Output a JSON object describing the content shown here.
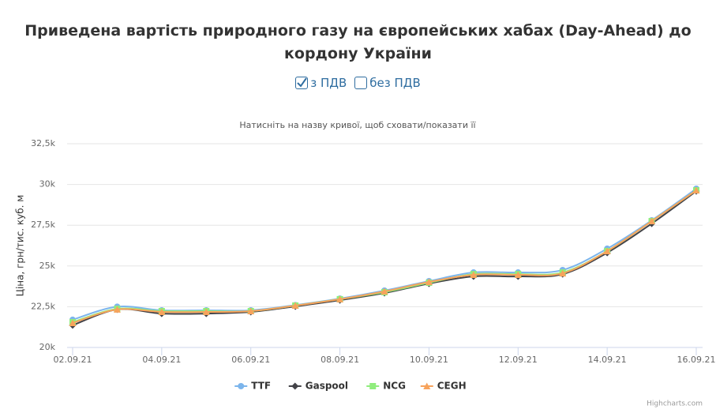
{
  "chart_data": {
    "type": "line",
    "title": "Приведена вартість природного газу на європейських хабах (Day-Ahead) до кордону України",
    "controls": [
      {
        "label": "з ПДВ",
        "checked": true
      },
      {
        "label": "без ПДВ",
        "checked": false
      }
    ],
    "subtitle": "Натисніть на назву кривої, щоб сховати/показати її",
    "y_label": "Ціна, грн/тис. куб. м",
    "credits": "Highcharts.com",
    "categories": [
      "02.09.21",
      null,
      "04.09.21",
      null,
      "06.09.21",
      null,
      "08.09.21",
      null,
      "10.09.21",
      null,
      "12.09.21",
      null,
      "14.09.21",
      null,
      "16.09.21"
    ],
    "ylim": [
      20000,
      32500
    ],
    "yticks": [
      {
        "value": 20000,
        "label": "20k"
      },
      {
        "value": 22500,
        "label": "22,5k"
      },
      {
        "value": 25000,
        "label": "25k"
      },
      {
        "value": 27500,
        "label": "27,5k"
      },
      {
        "value": 30000,
        "label": "30k"
      },
      {
        "value": 32500,
        "label": "32,5k"
      }
    ],
    "grid": true,
    "legend": "bottom",
    "series": [
      {
        "name": "TTF",
        "color": "#7cb5ec",
        "marker": "circle",
        "values": [
          21700,
          22500,
          22280,
          22280,
          22280,
          22600,
          23000,
          23490,
          24070,
          24600,
          24600,
          24750,
          26060,
          27800,
          29740
        ]
      },
      {
        "name": "Gaspool",
        "color": "#434348",
        "marker": "diamond",
        "values": [
          21360,
          22330,
          22080,
          22080,
          22180,
          22520,
          22900,
          23340,
          23920,
          24360,
          24360,
          24500,
          25810,
          27600,
          29590
        ]
      },
      {
        "name": "NCG",
        "color": "#90ed7d",
        "marker": "square",
        "values": [
          21550,
          22370,
          22230,
          22230,
          22230,
          22570,
          22960,
          23390,
          23970,
          24500,
          24500,
          24600,
          25910,
          27750,
          29640
        ]
      },
      {
        "name": "CEGH",
        "color": "#f7a35c",
        "marker": "triangle",
        "values": [
          21500,
          22330,
          22180,
          22180,
          22230,
          22570,
          22960,
          23440,
          24020,
          24460,
          24460,
          24550,
          25910,
          27750,
          29640
        ]
      }
    ]
  }
}
